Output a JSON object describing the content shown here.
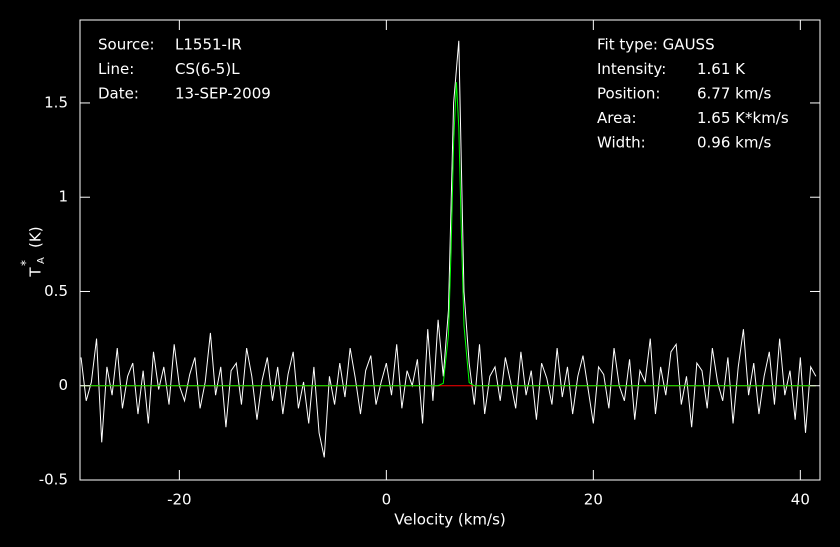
{
  "chart_data": {
    "type": "line",
    "x_label": "Velocity (km/s)",
    "y_label_main": "T",
    "y_label_sub": "A",
    "y_label_sup": "*",
    "y_label_unit": "(K)",
    "info_left": [
      [
        "Source:",
        "L1551-IR"
      ],
      [
        "Line:",
        "CS(6-5)L"
      ],
      [
        "Date:",
        "13-SEP-2009"
      ]
    ],
    "info_right": [
      [
        "Fit type: GAUSS",
        null
      ],
      [
        "Intensity:",
        "1.61 K"
      ],
      [
        "Position:",
        "6.77 km/s"
      ],
      [
        "Area:",
        "1.65 K*km/s"
      ],
      [
        "Width:",
        "0.96 km/s"
      ]
    ],
    "xlim": [
      -29.6,
      41.9
    ],
    "ylim": [
      -0.5,
      1.94
    ],
    "xticks": [
      -20,
      0,
      20,
      40
    ],
    "yticks": [
      -0.5,
      0,
      0.5,
      1,
      1.5
    ],
    "series": [
      {
        "name": "spectrum",
        "color": "#ffffff",
        "x": [
          -29.5,
          -29,
          -28.5,
          -28,
          -27.5,
          -27,
          -26.5,
          -26,
          -25.5,
          -25,
          -24.5,
          -24,
          -23.5,
          -23,
          -22.5,
          -22,
          -21.5,
          -21,
          -20.5,
          -20,
          -19.5,
          -19,
          -18.5,
          -18,
          -17.5,
          -17,
          -16.5,
          -16,
          -15.5,
          -15,
          -14.5,
          -14,
          -13.5,
          -13,
          -12.5,
          -12,
          -11.5,
          -11,
          -10.5,
          -10,
          -9.5,
          -9,
          -8.5,
          -8,
          -7.5,
          -7,
          -6.5,
          -6,
          -5.5,
          -5,
          -4.5,
          -4,
          -3.5,
          -3,
          -2.5,
          -2,
          -1.5,
          -1,
          -0.5,
          0,
          0.5,
          1,
          1.5,
          2,
          2.5,
          3,
          3.5,
          4,
          4.5,
          5,
          5.5,
          6,
          6.5,
          7,
          7.5,
          8,
          8.5,
          9,
          9.5,
          10,
          10.5,
          11,
          11.5,
          12,
          12.5,
          13,
          13.5,
          14,
          14.5,
          15,
          15.5,
          16,
          16.5,
          17,
          17.5,
          18,
          18.5,
          19,
          19.5,
          20,
          20.5,
          21,
          21.5,
          22,
          22.5,
          23,
          23.5,
          24,
          24.5,
          25,
          25.5,
          26,
          26.5,
          27,
          27.5,
          28,
          28.5,
          29,
          29.5,
          30,
          30.5,
          31,
          31.5,
          32,
          32.5,
          33,
          33.5,
          34,
          34.5,
          35,
          35.5,
          36,
          36.5,
          37,
          37.5,
          38,
          38.5,
          39,
          39.5,
          40,
          40.5,
          41,
          41.5
        ],
        "values": [
          0.15,
          -0.08,
          0.02,
          0.25,
          -0.3,
          0.1,
          -0.05,
          0.2,
          -0.12,
          0.05,
          0.12,
          -0.15,
          0.08,
          -0.2,
          0.18,
          -0.02,
          0.1,
          -0.1,
          0.22,
          0.0,
          -0.08,
          0.06,
          0.15,
          -0.12,
          0.02,
          0.28,
          -0.05,
          0.1,
          -0.22,
          0.08,
          0.12,
          -0.1,
          0.2,
          0.05,
          -0.18,
          0.03,
          0.15,
          -0.08,
          0.1,
          -0.15,
          0.06,
          0.18,
          -0.12,
          0.02,
          -0.2,
          0.1,
          -0.25,
          -0.38,
          0.05,
          -0.1,
          0.12,
          -0.06,
          0.2,
          0.04,
          -0.15,
          0.08,
          0.16,
          -0.1,
          0.02,
          0.12,
          -0.05,
          0.22,
          -0.12,
          0.08,
          0.0,
          0.14,
          -0.2,
          0.3,
          -0.08,
          0.35,
          0.05,
          0.4,
          1.5,
          1.83,
          0.5,
          0.12,
          -0.1,
          0.22,
          -0.15,
          0.05,
          0.1,
          -0.08,
          0.15,
          0.02,
          -0.12,
          0.18,
          -0.05,
          0.08,
          -0.18,
          0.12,
          0.04,
          -0.1,
          0.2,
          -0.06,
          0.1,
          -0.15,
          0.05,
          0.16,
          -0.02,
          -0.2,
          0.1,
          0.06,
          -0.12,
          0.2,
          0.0,
          -0.08,
          0.14,
          -0.18,
          0.08,
          0.02,
          0.25,
          -0.15,
          0.1,
          -0.05,
          0.18,
          0.22,
          -0.1,
          0.05,
          -0.22,
          0.12,
          0.08,
          -0.12,
          0.2,
          0.02,
          -0.08,
          0.15,
          -0.2,
          0.1,
          0.3,
          -0.05,
          0.12,
          -0.15,
          0.05,
          0.18,
          -0.1,
          0.25,
          -0.05,
          0.08,
          -0.18,
          0.15,
          -0.25,
          0.1,
          0.05
        ]
      },
      {
        "name": "baseline",
        "color": "#ff0000",
        "x": [
          -29.5,
          41.5
        ],
        "values": [
          0,
          0
        ]
      },
      {
        "name": "fit",
        "color": "#00ff00",
        "x": [
          -29.5,
          5.0,
          5.5,
          6.0,
          6.25,
          6.5,
          6.77,
          7.0,
          7.25,
          7.5,
          8.0,
          8.5,
          41.5
        ],
        "values": [
          0,
          0,
          0.013,
          0.27,
          0.71,
          1.29,
          1.61,
          1.37,
          0.81,
          0.32,
          0.017,
          0,
          0
        ]
      }
    ]
  }
}
